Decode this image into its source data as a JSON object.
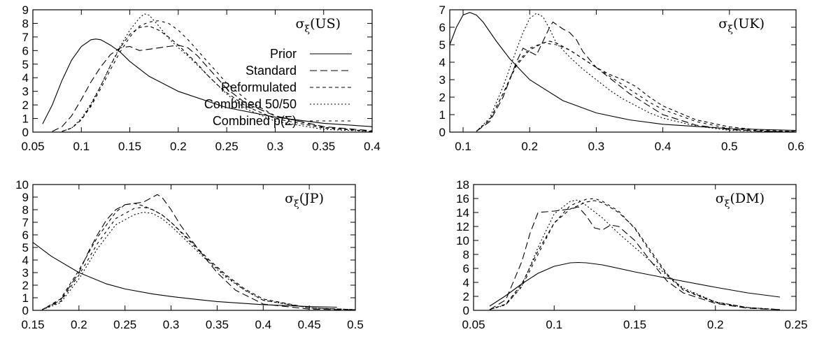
{
  "chart_data": [
    {
      "type": "line",
      "title": "σ_ξ(US)",
      "title_main": "σ",
      "title_sub": "ξ",
      "title_tail": "(US)",
      "xlim": [
        0.05,
        0.4
      ],
      "ylim": [
        0,
        9
      ],
      "xticks": [
        0.05,
        0.1,
        0.15,
        0.2,
        0.25,
        0.3,
        0.35,
        0.4
      ],
      "xtick_labels": [
        "0.05",
        "0.1",
        "0.15",
        "0.2",
        "0.25",
        "0.3",
        "0.35",
        "0.4"
      ],
      "yticks": [
        0,
        1,
        2,
        3,
        4,
        5,
        6,
        7,
        8,
        9
      ],
      "ytick_labels": [
        "0",
        "1",
        "2",
        "3",
        "4",
        "5",
        "6",
        "7",
        "8",
        "9"
      ],
      "legend": true,
      "legend_position": "center-right",
      "series": [
        {
          "name": "Prior",
          "dash": "none",
          "x": [
            0.06,
            0.07,
            0.08,
            0.09,
            0.1,
            0.11,
            0.115,
            0.12,
            0.13,
            0.14,
            0.15,
            0.17,
            0.2,
            0.25,
            0.3,
            0.35,
            0.4
          ],
          "y": [
            0.6,
            2.0,
            3.8,
            5.3,
            6.3,
            6.8,
            6.85,
            6.8,
            6.4,
            5.9,
            5.2,
            4.1,
            3.0,
            1.8,
            1.1,
            0.65,
            0.4
          ]
        },
        {
          "name": "Standard",
          "dash": "10,5",
          "x": [
            0.07,
            0.08,
            0.09,
            0.1,
            0.11,
            0.12,
            0.13,
            0.14,
            0.15,
            0.16,
            0.17,
            0.18,
            0.19,
            0.2,
            0.21,
            0.22,
            0.23,
            0.24,
            0.25,
            0.27,
            0.3,
            0.35,
            0.4
          ],
          "y": [
            0.05,
            0.4,
            1.2,
            2.4,
            3.7,
            4.8,
            5.7,
            6.2,
            6.3,
            6.0,
            6.1,
            6.2,
            6.3,
            6.4,
            6.2,
            5.6,
            4.8,
            4.0,
            3.2,
            2.1,
            1.2,
            0.4,
            0.1
          ]
        },
        {
          "name": "Reformulated",
          "dash": "5,4",
          "x": [
            0.08,
            0.09,
            0.1,
            0.11,
            0.12,
            0.13,
            0.14,
            0.15,
            0.16,
            0.17,
            0.18,
            0.19,
            0.2,
            0.21,
            0.22,
            0.23,
            0.24,
            0.25,
            0.27,
            0.3,
            0.35,
            0.4
          ],
          "y": [
            0.05,
            0.3,
            0.9,
            2.0,
            3.4,
            4.9,
            6.2,
            7.2,
            7.7,
            7.8,
            7.5,
            7.0,
            6.4,
            5.7,
            5.0,
            4.2,
            3.5,
            2.9,
            1.9,
            1.0,
            0.3,
            0.05
          ]
        },
        {
          "name": "Combined 50/50",
          "dash": "2,3",
          "x": [
            0.08,
            0.09,
            0.1,
            0.11,
            0.12,
            0.13,
            0.14,
            0.15,
            0.16,
            0.165,
            0.17,
            0.18,
            0.19,
            0.2,
            0.21,
            0.22,
            0.23,
            0.24,
            0.25,
            0.27,
            0.3,
            0.35,
            0.4
          ],
          "y": [
            0.05,
            0.3,
            1.0,
            2.1,
            3.4,
            4.9,
            6.3,
            7.5,
            8.4,
            8.7,
            8.6,
            7.8,
            6.9,
            6.2,
            5.6,
            4.9,
            4.2,
            3.5,
            2.8,
            1.7,
            0.8,
            0.2,
            0.05
          ]
        },
        {
          "name": "Combined p(Σ)",
          "dash": "4,5",
          "x": [
            0.08,
            0.09,
            0.1,
            0.11,
            0.12,
            0.13,
            0.14,
            0.15,
            0.16,
            0.17,
            0.18,
            0.19,
            0.2,
            0.21,
            0.22,
            0.23,
            0.24,
            0.25,
            0.27,
            0.3,
            0.35,
            0.4
          ],
          "y": [
            0.05,
            0.3,
            0.9,
            1.9,
            3.2,
            4.6,
            5.9,
            7.0,
            7.8,
            8.1,
            8.2,
            8.0,
            7.5,
            6.8,
            6.0,
            5.2,
            4.4,
            3.6,
            2.4,
            1.2,
            0.35,
            0.05
          ]
        }
      ]
    },
    {
      "type": "line",
      "title": "σ_ξ(UK)",
      "title_main": "σ",
      "title_sub": "ξ",
      "title_tail": "(UK)",
      "xlim": [
        0.08,
        0.6
      ],
      "ylim": [
        0,
        7
      ],
      "xticks": [
        0.1,
        0.2,
        0.3,
        0.4,
        0.5,
        0.6
      ],
      "xtick_labels": [
        "0.1",
        "0.2",
        "0.3",
        "0.4",
        "0.5",
        "0.6"
      ],
      "yticks": [
        0,
        1,
        2,
        3,
        4,
        5,
        6,
        7
      ],
      "ytick_labels": [
        "0",
        "1",
        "2",
        "3",
        "4",
        "5",
        "6",
        "7"
      ],
      "legend": false,
      "series": [
        {
          "name": "Prior",
          "dash": "none",
          "x": [
            0.08,
            0.09,
            0.1,
            0.11,
            0.12,
            0.13,
            0.15,
            0.17,
            0.2,
            0.25,
            0.3,
            0.35,
            0.4,
            0.5,
            0.6
          ],
          "y": [
            5.0,
            6.0,
            6.7,
            6.85,
            6.7,
            6.3,
            5.2,
            4.2,
            3.0,
            1.8,
            1.1,
            0.7,
            0.45,
            0.2,
            0.1
          ]
        },
        {
          "name": "Standard",
          "dash": "10,5",
          "x": [
            0.12,
            0.14,
            0.16,
            0.18,
            0.19,
            0.2,
            0.21,
            0.22,
            0.23,
            0.235,
            0.25,
            0.26,
            0.27,
            0.28,
            0.3,
            0.32,
            0.35,
            0.4,
            0.45,
            0.5,
            0.55,
            0.6
          ],
          "y": [
            0.05,
            0.6,
            2.0,
            4.0,
            4.8,
            4.6,
            4.4,
            5.2,
            6.0,
            6.3,
            5.9,
            5.7,
            5.3,
            4.6,
            3.7,
            3.1,
            2.2,
            1.0,
            0.4,
            0.15,
            0.05,
            0.02
          ]
        },
        {
          "name": "Reformulated",
          "dash": "5,4",
          "x": [
            0.12,
            0.14,
            0.16,
            0.18,
            0.2,
            0.22,
            0.23,
            0.24,
            0.26,
            0.28,
            0.3,
            0.32,
            0.34,
            0.36,
            0.38,
            0.4,
            0.45,
            0.5,
            0.55,
            0.6
          ],
          "y": [
            0.05,
            0.7,
            2.2,
            3.8,
            4.7,
            5.1,
            5.2,
            5.1,
            4.7,
            4.2,
            3.7,
            3.3,
            3.0,
            2.6,
            2.0,
            1.5,
            0.7,
            0.3,
            0.1,
            0.05
          ]
        },
        {
          "name": "Combined 50/50",
          "dash": "2,3",
          "x": [
            0.12,
            0.14,
            0.16,
            0.18,
            0.19,
            0.2,
            0.21,
            0.22,
            0.23,
            0.24,
            0.26,
            0.28,
            0.3,
            0.32,
            0.34,
            0.36,
            0.38,
            0.4,
            0.45,
            0.5,
            0.55,
            0.6
          ],
          "y": [
            0.05,
            0.8,
            2.6,
            4.7,
            5.7,
            6.5,
            6.8,
            6.6,
            5.9,
            5.1,
            4.3,
            3.6,
            3.0,
            2.4,
            1.9,
            1.5,
            1.1,
            0.8,
            0.35,
            0.1,
            0.05,
            0.02
          ]
        },
        {
          "name": "Combined p(Σ)",
          "dash": "4,5",
          "x": [
            0.12,
            0.14,
            0.16,
            0.18,
            0.2,
            0.22,
            0.24,
            0.26,
            0.28,
            0.3,
            0.32,
            0.34,
            0.36,
            0.38,
            0.4,
            0.45,
            0.5,
            0.55,
            0.6
          ],
          "y": [
            0.05,
            0.7,
            2.2,
            3.9,
            4.8,
            5.1,
            5.0,
            4.7,
            4.2,
            3.7,
            3.2,
            2.7,
            2.2,
            1.7,
            1.3,
            0.6,
            0.2,
            0.07,
            0.02
          ]
        }
      ]
    },
    {
      "type": "line",
      "title": "σ_ξ(JP)",
      "title_main": "σ",
      "title_sub": "ξ",
      "title_tail": "(JP)",
      "xlim": [
        0.15,
        0.5
      ],
      "ylim": [
        0,
        10
      ],
      "xticks": [
        0.15,
        0.2,
        0.25,
        0.3,
        0.35,
        0.4,
        0.45,
        0.5
      ],
      "xtick_labels": [
        "0.15",
        "0.2",
        "0.25",
        "0.3",
        "0.35",
        "0.4",
        "0.45",
        "0.5"
      ],
      "yticks": [
        0,
        1,
        2,
        3,
        4,
        5,
        6,
        7,
        8,
        9,
        10
      ],
      "ytick_labels": [
        "0",
        "1",
        "2",
        "3",
        "4",
        "5",
        "6",
        "7",
        "8",
        "9",
        "10"
      ],
      "legend": false,
      "series": [
        {
          "name": "Prior",
          "dash": "none",
          "x": [
            0.15,
            0.17,
            0.2,
            0.23,
            0.25,
            0.28,
            0.3,
            0.33,
            0.35,
            0.4,
            0.45,
            0.48
          ],
          "y": [
            5.4,
            4.3,
            3.0,
            2.1,
            1.7,
            1.3,
            1.1,
            0.85,
            0.7,
            0.45,
            0.3,
            0.25
          ]
        },
        {
          "name": "Standard",
          "dash": "10,5",
          "x": [
            0.16,
            0.18,
            0.2,
            0.21,
            0.22,
            0.23,
            0.24,
            0.25,
            0.26,
            0.27,
            0.28,
            0.285,
            0.29,
            0.3,
            0.31,
            0.32,
            0.33,
            0.35,
            0.37,
            0.4,
            0.45,
            0.5
          ],
          "y": [
            0.05,
            0.8,
            3.0,
            4.6,
            6.0,
            7.2,
            8.0,
            8.4,
            8.5,
            8.6,
            9.0,
            9.2,
            9.0,
            8.0,
            6.8,
            5.8,
            4.8,
            3.0,
            1.6,
            0.5,
            0.1,
            0.02
          ]
        },
        {
          "name": "Reformulated",
          "dash": "5,4",
          "x": [
            0.16,
            0.18,
            0.2,
            0.22,
            0.24,
            0.25,
            0.26,
            0.27,
            0.28,
            0.29,
            0.3,
            0.32,
            0.34,
            0.36,
            0.38,
            0.4,
            0.45,
            0.5
          ],
          "y": [
            0.05,
            0.9,
            3.2,
            5.8,
            7.8,
            8.4,
            8.5,
            8.3,
            8.0,
            7.6,
            7.0,
            5.6,
            4.1,
            2.8,
            1.7,
            0.9,
            0.2,
            0.05
          ]
        },
        {
          "name": "Combined 50/50",
          "dash": "2,3",
          "x": [
            0.16,
            0.18,
            0.2,
            0.22,
            0.24,
            0.26,
            0.27,
            0.28,
            0.29,
            0.3,
            0.32,
            0.34,
            0.36,
            0.38,
            0.4,
            0.45,
            0.5
          ],
          "y": [
            0.05,
            0.6,
            2.5,
            4.9,
            6.8,
            7.6,
            7.8,
            7.7,
            7.3,
            6.7,
            5.3,
            3.9,
            2.6,
            1.6,
            0.8,
            0.2,
            0.05
          ]
        },
        {
          "name": "Combined p(Σ)",
          "dash": "4,5",
          "x": [
            0.16,
            0.18,
            0.2,
            0.22,
            0.24,
            0.26,
            0.27,
            0.28,
            0.29,
            0.3,
            0.32,
            0.34,
            0.36,
            0.38,
            0.4,
            0.45,
            0.5
          ],
          "y": [
            0.05,
            0.7,
            2.8,
            5.3,
            7.3,
            8.1,
            8.2,
            8.0,
            7.6,
            7.0,
            5.5,
            4.0,
            2.7,
            1.6,
            0.8,
            0.2,
            0.05
          ]
        }
      ]
    },
    {
      "type": "line",
      "title": "σ_ξ(DM)",
      "title_main": "σ",
      "title_sub": "ξ",
      "title_tail": "(DM)",
      "xlim": [
        0.05,
        0.25
      ],
      "ylim": [
        0,
        18
      ],
      "xticks": [
        0.05,
        0.1,
        0.15,
        0.2,
        0.25
      ],
      "xtick_labels": [
        "0.05",
        "0.1",
        "0.15",
        "0.2",
        "0.25"
      ],
      "yticks": [
        0,
        2,
        4,
        6,
        8,
        10,
        12,
        14,
        16,
        18
      ],
      "ytick_labels": [
        "0",
        "2",
        "4",
        "6",
        "8",
        "10",
        "12",
        "14",
        "16",
        "18"
      ],
      "legend": false,
      "series": [
        {
          "name": "Prior",
          "dash": "none",
          "x": [
            0.06,
            0.07,
            0.08,
            0.09,
            0.1,
            0.11,
            0.115,
            0.12,
            0.13,
            0.14,
            0.15,
            0.17,
            0.2,
            0.22,
            0.24
          ],
          "y": [
            0.6,
            2.1,
            3.8,
            5.3,
            6.3,
            6.8,
            6.85,
            6.8,
            6.5,
            6.0,
            5.5,
            4.6,
            3.3,
            2.5,
            1.9
          ]
        },
        {
          "name": "Standard",
          "dash": "10,5",
          "x": [
            0.06,
            0.07,
            0.08,
            0.085,
            0.09,
            0.1,
            0.11,
            0.115,
            0.12,
            0.125,
            0.13,
            0.135,
            0.14,
            0.15,
            0.16,
            0.17,
            0.18,
            0.2,
            0.22,
            0.24
          ],
          "y": [
            0.1,
            1.5,
            7.0,
            11.0,
            14.0,
            14.2,
            14.5,
            14.8,
            13.5,
            11.8,
            11.5,
            12.2,
            12.0,
            10.0,
            7.0,
            4.2,
            2.5,
            1.0,
            0.3,
            0.1
          ]
        },
        {
          "name": "Reformulated",
          "dash": "5,4",
          "x": [
            0.06,
            0.07,
            0.08,
            0.09,
            0.1,
            0.11,
            0.12,
            0.125,
            0.13,
            0.14,
            0.15,
            0.16,
            0.17,
            0.18,
            0.2,
            0.22,
            0.24
          ],
          "y": [
            0.1,
            0.9,
            3.8,
            8.5,
            12.5,
            14.5,
            15.5,
            15.7,
            15.4,
            14.0,
            11.8,
            8.5,
            5.2,
            3.0,
            1.2,
            0.4,
            0.1
          ]
        },
        {
          "name": "Combined 50/50",
          "dash": "2,3",
          "x": [
            0.06,
            0.07,
            0.08,
            0.09,
            0.1,
            0.11,
            0.115,
            0.12,
            0.13,
            0.14,
            0.15,
            0.16,
            0.17,
            0.18,
            0.2,
            0.22,
            0.24
          ],
          "y": [
            0.1,
            0.8,
            3.5,
            9.0,
            13.8,
            15.6,
            15.8,
            15.0,
            13.2,
            11.0,
            9.0,
            7.0,
            5.0,
            3.2,
            1.2,
            0.4,
            0.1
          ]
        },
        {
          "name": "Combined p(Σ)",
          "dash": "4,5",
          "x": [
            0.06,
            0.07,
            0.08,
            0.09,
            0.1,
            0.11,
            0.12,
            0.125,
            0.13,
            0.14,
            0.15,
            0.16,
            0.17,
            0.18,
            0.2,
            0.22,
            0.24
          ],
          "y": [
            0.1,
            0.8,
            3.4,
            8.0,
            12.5,
            15.0,
            15.9,
            16.0,
            15.6,
            14.2,
            11.7,
            8.2,
            5.0,
            2.9,
            1.1,
            0.4,
            0.1
          ]
        }
      ]
    }
  ]
}
